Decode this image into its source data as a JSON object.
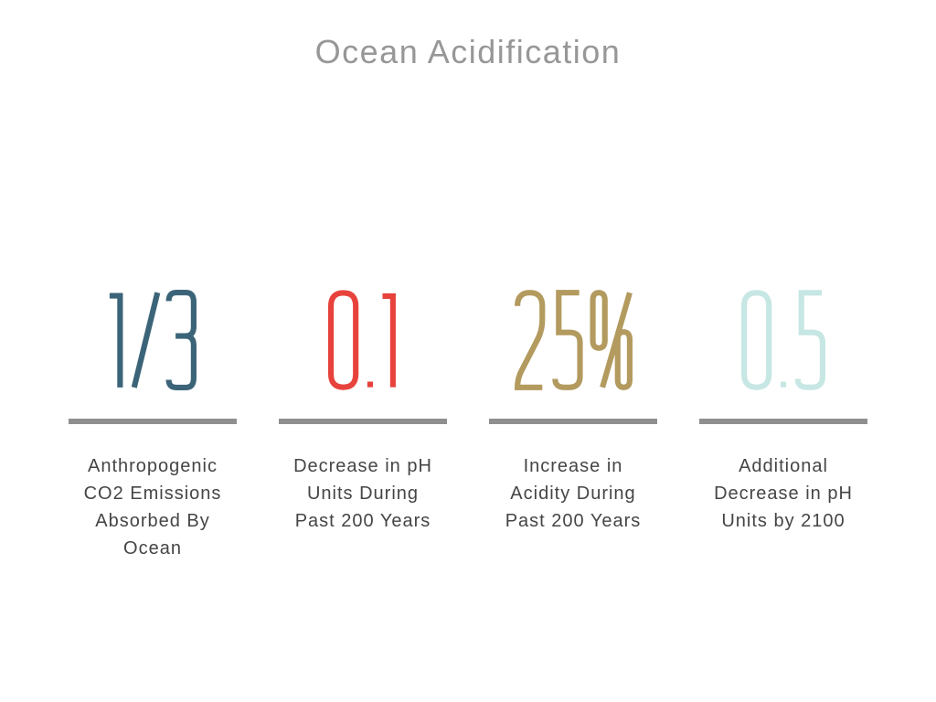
{
  "page": {
    "title": "Ocean Acidification"
  },
  "colors": {
    "background": "#ffffff",
    "title_text": "#979797",
    "caption_text": "#454547",
    "divider": "#8f8f8f",
    "stat_teal": "#3c6478",
    "stat_red": "#e8423c",
    "stat_gold": "#b39a5e",
    "stat_aqua": "#c6e7e3"
  },
  "stats": [
    {
      "value": "1/3",
      "color": "#3c6478",
      "label": "Anthropogenic\nCO2 Emissions\nAbsorbed By\nOcean"
    },
    {
      "value": "0.1",
      "color": "#e8423c",
      "label": "Decrease in pH\nUnits During\nPast 200 Years"
    },
    {
      "value": "25%",
      "color": "#b39a5e",
      "label": "Increase in\nAcidity During\nPast 200 Years"
    },
    {
      "value": "0.5",
      "color": "#c6e7e3",
      "label": "Additional\nDecrease in pH\nUnits by 2100"
    }
  ],
  "chart_data": {
    "type": "table",
    "title": "Ocean Acidification",
    "categories": [
      "Anthropogenic CO2 Emissions Absorbed By Ocean",
      "Decrease in pH Units During Past 200 Years",
      "Increase in Acidity During Past 200 Years",
      "Additional Decrease in pH Units by 2100"
    ],
    "values": [
      "1/3",
      "0.1",
      "25%",
      "0.5"
    ],
    "legend": "none",
    "grid": false,
    "layout": "four stat columns, big number above gray divider bar above caption"
  }
}
